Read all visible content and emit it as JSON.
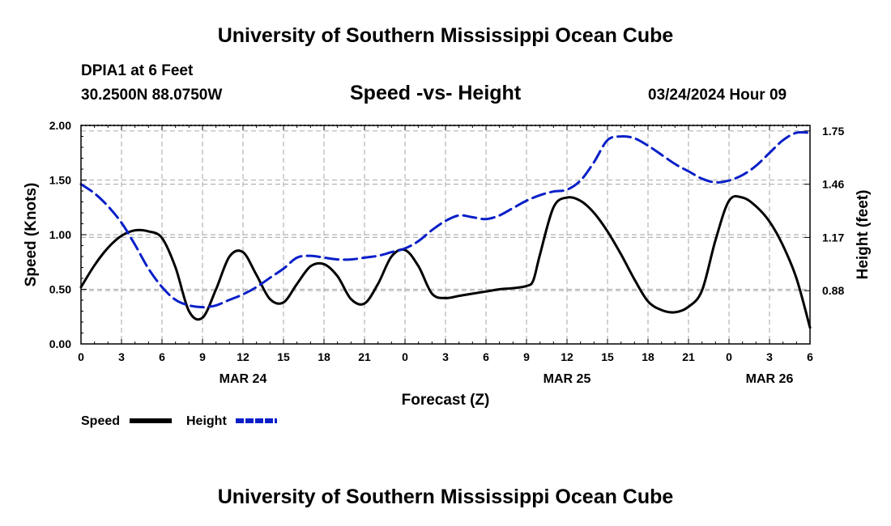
{
  "header": {
    "title": "University of Southern Mississippi Ocean Cube",
    "station": "DPIA1 at 6 Feet",
    "coords": "30.2500N  88.0750W",
    "subtitle": "Speed -vs- Height",
    "datetime": "03/24/2024 Hour 09"
  },
  "footer": {
    "title": "University of Southern Mississippi Ocean Cube"
  },
  "legend": {
    "speed_label": "Speed",
    "height_label": "Height"
  },
  "colors": {
    "speed": "#000000",
    "height": "#0a1fc8",
    "grid": "#b4b4b4"
  },
  "chart_data": {
    "type": "line",
    "title": "Speed -vs- Height",
    "xlabel": "Forecast (Z)",
    "ylabel": "Speed (Knots)",
    "y2label": "Height (feet)",
    "x_range": [
      0,
      54
    ],
    "ylim": [
      0,
      2
    ],
    "y2lim": [
      0.59,
      1.78
    ],
    "x_ticks": [
      {
        "x": 0,
        "label": "0"
      },
      {
        "x": 3,
        "label": "3"
      },
      {
        "x": 6,
        "label": "6"
      },
      {
        "x": 9,
        "label": "9"
      },
      {
        "x": 12,
        "label": "12"
      },
      {
        "x": 15,
        "label": "15"
      },
      {
        "x": 18,
        "label": "18"
      },
      {
        "x": 21,
        "label": "21"
      },
      {
        "x": 24,
        "label": "0"
      },
      {
        "x": 27,
        "label": "3"
      },
      {
        "x": 30,
        "label": "6"
      },
      {
        "x": 33,
        "label": "9"
      },
      {
        "x": 36,
        "label": "12"
      },
      {
        "x": 39,
        "label": "15"
      },
      {
        "x": 42,
        "label": "18"
      },
      {
        "x": 45,
        "label": "21"
      },
      {
        "x": 48,
        "label": "0"
      },
      {
        "x": 51,
        "label": "3"
      },
      {
        "x": 54,
        "label": "6"
      }
    ],
    "date_labels": [
      {
        "x": 12,
        "label": "MAR 24"
      },
      {
        "x": 36,
        "label": "MAR 25"
      },
      {
        "x": 51,
        "label": "MAR 26"
      }
    ],
    "y_ticks": [
      {
        "v": 0,
        "label": "0.00"
      },
      {
        "v": 0.5,
        "label": "0.50"
      },
      {
        "v": 1.0,
        "label": "1.00"
      },
      {
        "v": 1.5,
        "label": "1.50"
      },
      {
        "v": 2.0,
        "label": "2.00"
      }
    ],
    "y2_ticks": [
      {
        "v": 0.88,
        "label": "0.88"
      },
      {
        "v": 1.17,
        "label": "1.17"
      },
      {
        "v": 1.46,
        "label": "1.46"
      },
      {
        "v": 1.75,
        "label": "1.75"
      }
    ],
    "series": [
      {
        "name": "Speed",
        "axis": "left",
        "style": "solid",
        "x": [
          0,
          1,
          2,
          3,
          4,
          5,
          6,
          7,
          8,
          9,
          10,
          11,
          12,
          13,
          14,
          15,
          16,
          17,
          18,
          19,
          20,
          21,
          22,
          23,
          24,
          25,
          26,
          27,
          28,
          29,
          30,
          31,
          32,
          33,
          33.5,
          34,
          35,
          36,
          37,
          38,
          39,
          40,
          41,
          42,
          43,
          44,
          45,
          46,
          47,
          48,
          49,
          50,
          51,
          52,
          53,
          54
        ],
        "values": [
          0.52,
          0.72,
          0.88,
          0.99,
          1.04,
          1.03,
          0.97,
          0.7,
          0.3,
          0.24,
          0.5,
          0.8,
          0.84,
          0.63,
          0.41,
          0.38,
          0.55,
          0.71,
          0.73,
          0.62,
          0.41,
          0.37,
          0.55,
          0.8,
          0.86,
          0.71,
          0.46,
          0.42,
          0.44,
          0.46,
          0.48,
          0.5,
          0.51,
          0.53,
          0.58,
          0.82,
          1.25,
          1.34,
          1.31,
          1.2,
          1.03,
          0.82,
          0.59,
          0.39,
          0.31,
          0.29,
          0.34,
          0.49,
          0.95,
          1.31,
          1.34,
          1.26,
          1.12,
          0.9,
          0.6,
          0.15
        ]
      },
      {
        "name": "Height",
        "axis": "right",
        "style": "dashed",
        "x": [
          0,
          1,
          2,
          3,
          4,
          5,
          6,
          7,
          8,
          9,
          10,
          11,
          12,
          13,
          14,
          15,
          16,
          17,
          18,
          19,
          20,
          21,
          22,
          23,
          24,
          25,
          26,
          27,
          28,
          29,
          30,
          31,
          32,
          33,
          34,
          35,
          36,
          37,
          38,
          39,
          40,
          41,
          42,
          43,
          44,
          45,
          46,
          47,
          48,
          49,
          50,
          51,
          52,
          53,
          54
        ],
        "values": [
          1.46,
          1.41,
          1.34,
          1.25,
          1.13,
          1.0,
          0.9,
          0.83,
          0.8,
          0.79,
          0.8,
          0.83,
          0.86,
          0.9,
          0.95,
          1.0,
          1.06,
          1.07,
          1.06,
          1.05,
          1.05,
          1.06,
          1.07,
          1.09,
          1.11,
          1.15,
          1.21,
          1.26,
          1.29,
          1.28,
          1.27,
          1.29,
          1.33,
          1.37,
          1.4,
          1.42,
          1.43,
          1.48,
          1.58,
          1.7,
          1.72,
          1.71,
          1.67,
          1.62,
          1.57,
          1.53,
          1.49,
          1.47,
          1.48,
          1.51,
          1.56,
          1.63,
          1.7,
          1.74,
          1.74
        ]
      }
    ]
  }
}
